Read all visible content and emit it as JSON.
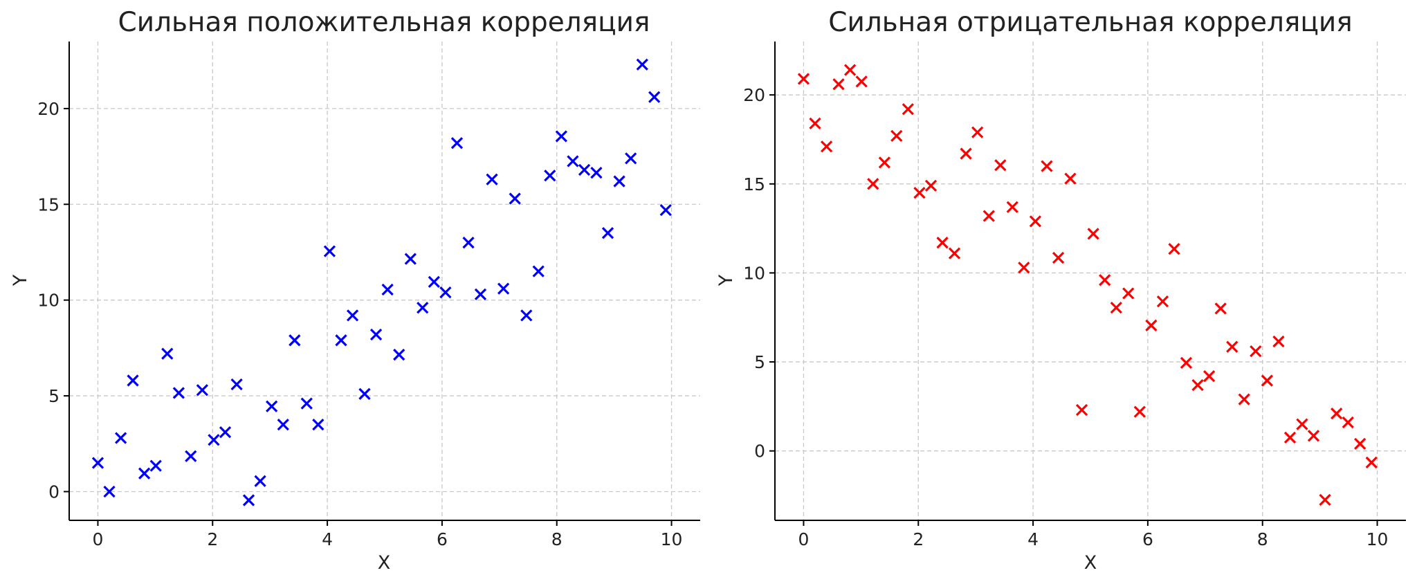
{
  "chart_data": [
    {
      "type": "scatter",
      "title": "Сильная положительная корреляция",
      "xlabel": "X",
      "ylabel": "Y",
      "xlim": [
        -0.5,
        10.5
      ],
      "ylim": [
        -1.5,
        23.5
      ],
      "xticks": [
        0,
        2,
        4,
        6,
        8,
        10
      ],
      "yticks": [
        0,
        5,
        10,
        15,
        20
      ],
      "grid": true,
      "marker": "x",
      "color": "#0000ff",
      "series": [
        {
          "x": [
            0,
            0.2,
            0.4,
            0.61,
            0.81,
            1.01,
            1.21,
            1.41,
            1.62,
            1.82,
            2.02,
            2.22,
            2.42,
            2.63,
            2.83,
            3.03,
            3.23,
            3.43,
            3.64,
            3.84,
            4.04,
            4.24,
            4.44,
            4.65,
            4.85,
            5.05,
            5.25,
            5.45,
            5.66,
            5.86,
            6.06,
            6.26,
            6.46,
            6.67,
            6.87,
            7.07,
            7.27,
            7.47,
            7.68,
            7.88,
            8.08,
            8.28,
            8.48,
            8.69,
            8.89,
            9.09,
            9.29,
            9.49,
            9.7,
            9.9
          ],
          "y": [
            1.5,
            0.0,
            2.8,
            5.8,
            0.95,
            1.35,
            7.2,
            5.15,
            1.85,
            5.3,
            2.7,
            3.1,
            5.6,
            -0.45,
            0.55,
            4.45,
            3.5,
            7.9,
            4.6,
            3.5,
            12.55,
            7.9,
            9.2,
            5.1,
            8.2,
            10.55,
            7.15,
            12.15,
            9.6,
            10.95,
            10.4,
            18.2,
            13.0,
            10.3,
            16.3,
            10.6,
            15.3,
            9.2,
            11.5,
            16.5,
            18.55,
            17.25,
            16.8,
            16.65,
            13.5,
            16.2,
            17.4,
            22.3,
            20.6,
            14.7
          ]
        }
      ]
    },
    {
      "type": "scatter",
      "title": "Сильная отрицательная корреляция",
      "xlabel": "X",
      "ylabel": "Y",
      "xlim": [
        -0.5,
        10.5
      ],
      "ylim": [
        -3.9,
        23.0
      ],
      "xticks": [
        0,
        2,
        4,
        6,
        8,
        10
      ],
      "yticks": [
        0,
        5,
        10,
        15,
        20
      ],
      "grid": true,
      "marker": "x",
      "color": "#ff0000",
      "series": [
        {
          "x": [
            0,
            0.2,
            0.4,
            0.61,
            0.81,
            1.01,
            1.21,
            1.41,
            1.62,
            1.82,
            2.02,
            2.22,
            2.42,
            2.63,
            2.83,
            3.03,
            3.23,
            3.43,
            3.64,
            3.84,
            4.04,
            4.24,
            4.44,
            4.65,
            4.85,
            5.05,
            5.25,
            5.45,
            5.66,
            5.86,
            6.06,
            6.26,
            6.46,
            6.67,
            6.87,
            7.07,
            7.27,
            7.47,
            7.68,
            7.88,
            8.08,
            8.28,
            8.48,
            8.69,
            8.89,
            9.09,
            9.29,
            9.49,
            9.7,
            9.9
          ],
          "y": [
            20.9,
            18.4,
            17.1,
            20.6,
            21.4,
            20.75,
            15.0,
            16.2,
            17.7,
            19.2,
            14.5,
            14.9,
            11.7,
            11.1,
            16.7,
            17.9,
            13.2,
            16.05,
            13.7,
            10.3,
            12.9,
            16.0,
            10.85,
            15.3,
            2.3,
            12.2,
            9.6,
            8.05,
            8.85,
            2.2,
            7.05,
            8.4,
            11.35,
            4.95,
            3.7,
            4.2,
            8.0,
            5.85,
            2.9,
            5.6,
            3.95,
            6.15,
            0.75,
            1.5,
            0.85,
            -2.75,
            2.1,
            1.6,
            0.4,
            -0.65
          ]
        }
      ]
    }
  ]
}
